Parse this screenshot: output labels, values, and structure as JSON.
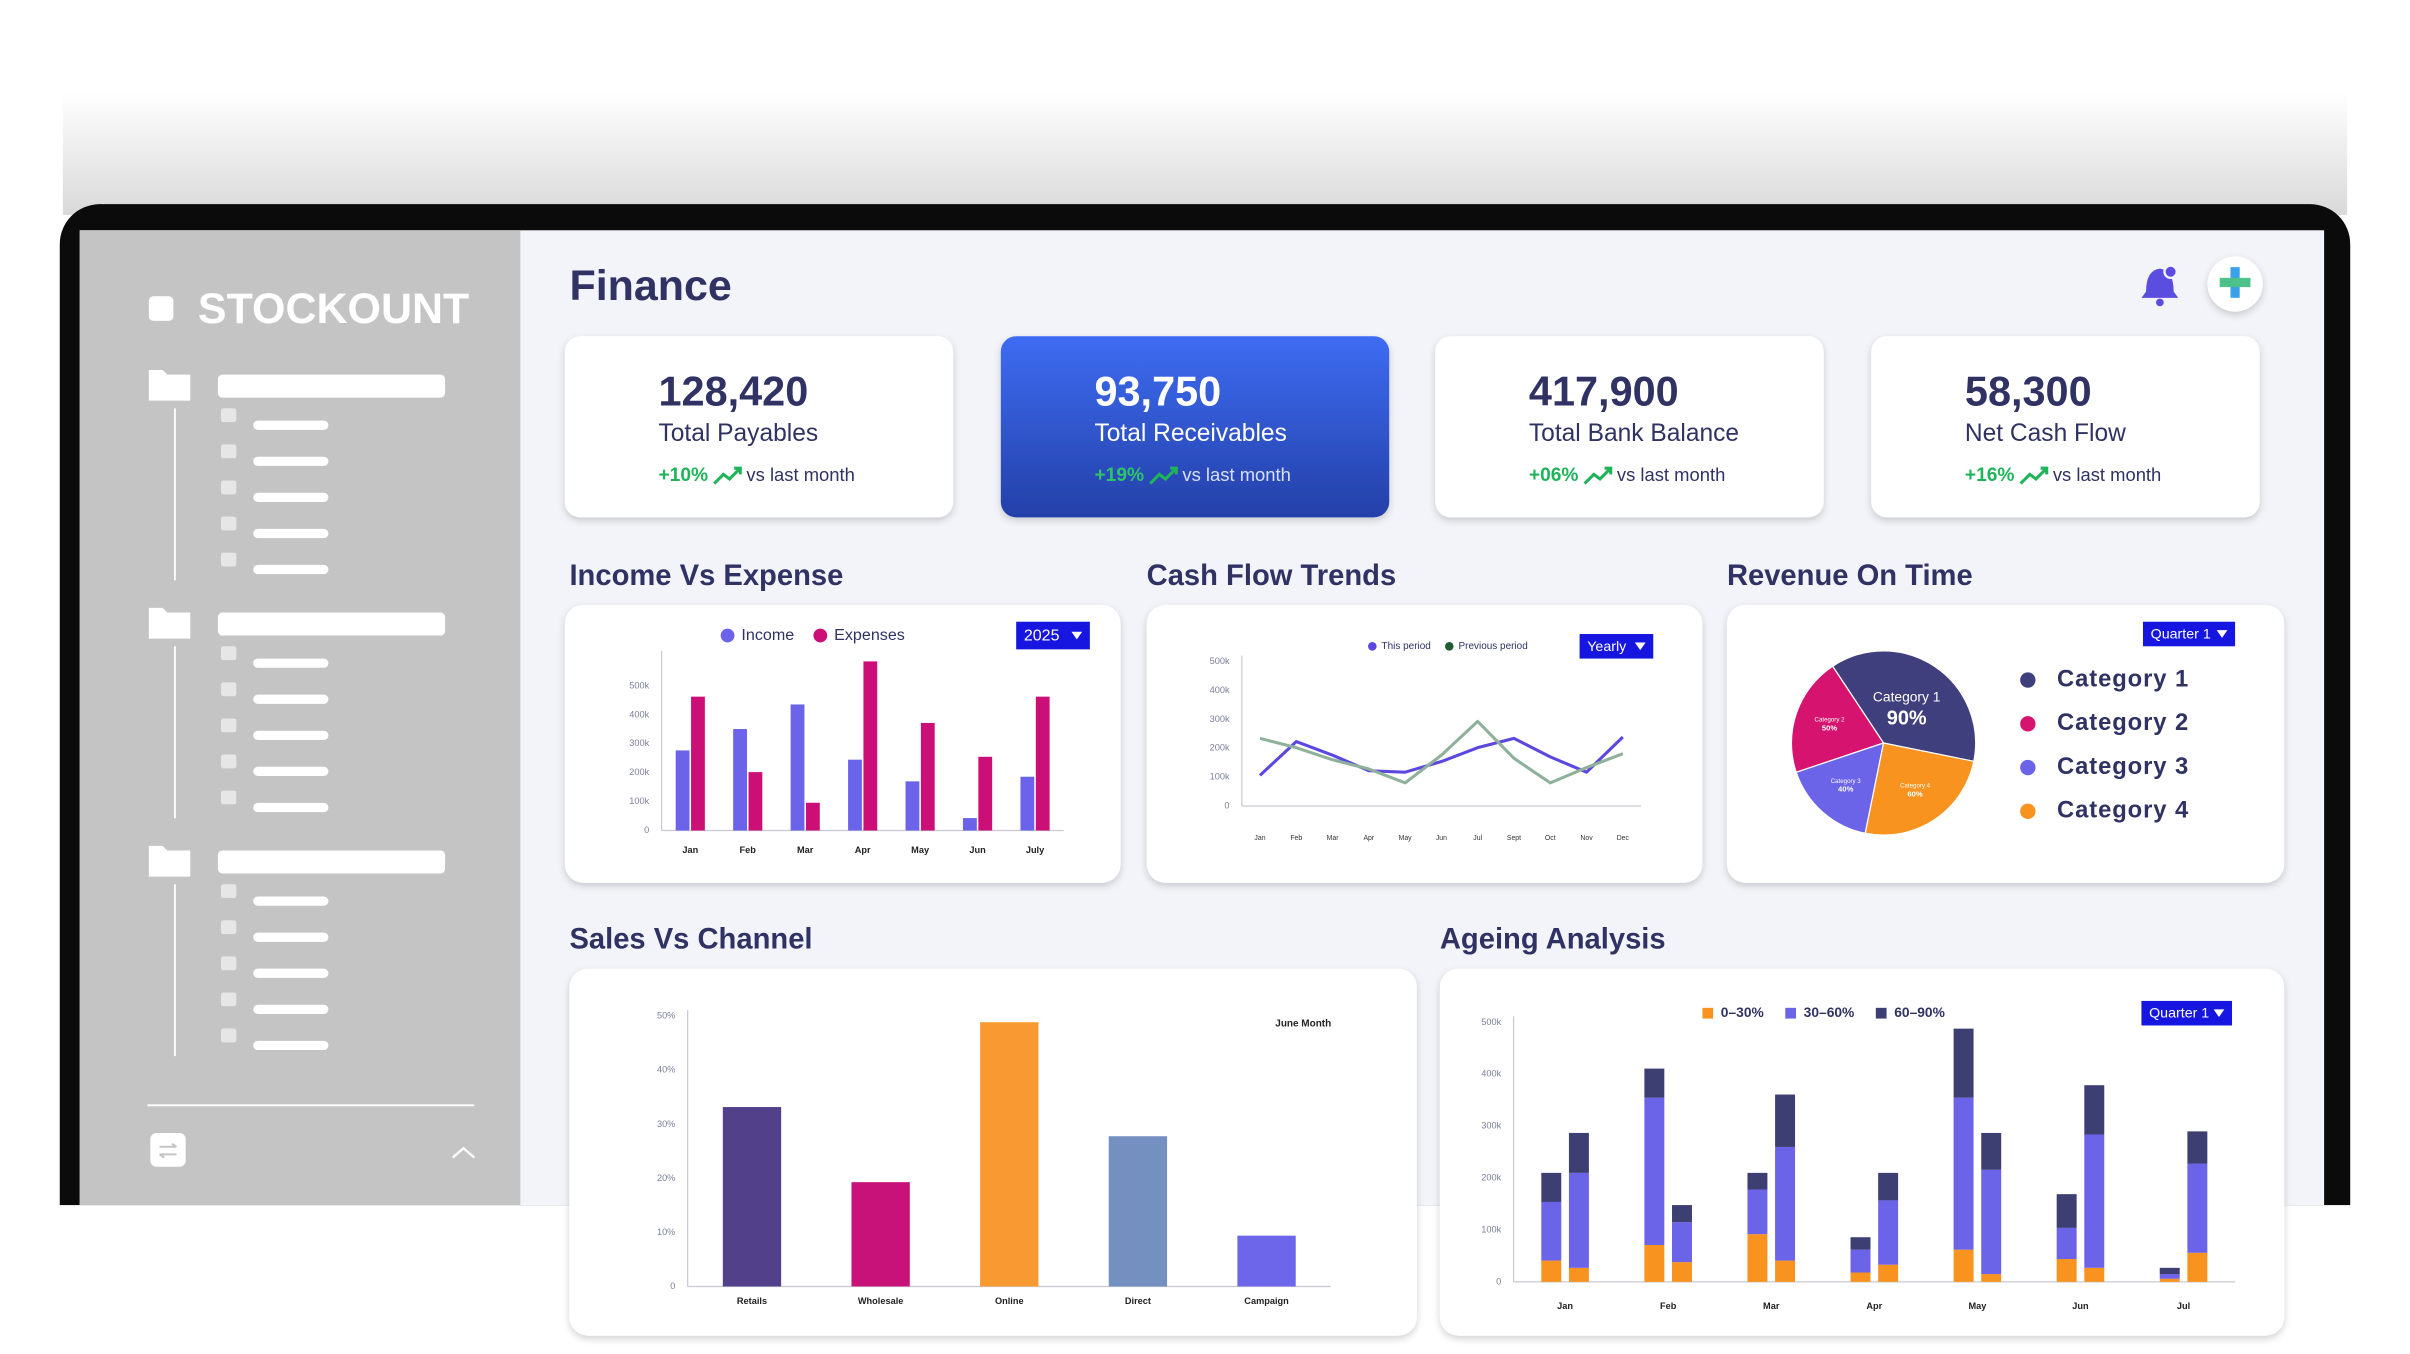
{
  "brand": "STOCKOUNT",
  "page_title": "Finance",
  "kpis": [
    {
      "value": "128,420",
      "label": "Total Payables",
      "change": "+10%",
      "note": "vs last month"
    },
    {
      "value": "93,750",
      "label": "Total Receivables",
      "change": "+19%",
      "note": "vs last month"
    },
    {
      "value": "417,900",
      "label": "Total Bank Balance",
      "change": "+06%",
      "note": "vs last month"
    },
    {
      "value": "58,300",
      "label": "Net Cash Flow",
      "change": "+16%",
      "note": "vs last month"
    }
  ],
  "chart_data": [
    {
      "type": "bar",
      "title": "Income Vs Expense",
      "filter": "2025",
      "categories": [
        "Jan",
        "Feb",
        "Mar",
        "Apr",
        "May",
        "Jun",
        "July"
      ],
      "series": [
        {
          "name": "Income",
          "color": "#6b63ea",
          "values": [
            277000,
            351000,
            436000,
            245000,
            170000,
            43000,
            186000
          ]
        },
        {
          "name": "Expenses",
          "color": "#cc0f76",
          "values": [
            463000,
            202000,
            96000,
            585000,
            372000,
            255000,
            463000
          ]
        }
      ],
      "ylim": [
        0,
        600000
      ],
      "yticks": [
        0,
        {
          "value": 100000,
          "label": "100k"
        },
        {
          "value": 200000,
          "label": "200k"
        },
        {
          "value": 300000,
          "label": "300k"
        },
        {
          "value": 400000,
          "label": "400k"
        },
        {
          "value": 500000,
          "label": "500k"
        }
      ],
      "grid": false,
      "legend": "top"
    },
    {
      "type": "line",
      "title": "Cash Flow Trends",
      "filter": "Yearly",
      "categories": [
        "Jan",
        "Feb",
        "Mar",
        "Apr",
        "May",
        "Jun",
        "Jul",
        "Sept",
        "Oct",
        "Nov",
        "Dec"
      ],
      "series": [
        {
          "name": "This period",
          "color": "#5a48e0",
          "values": [
            106000,
            223000,
            176000,
            122000,
            117000,
            154000,
            202000,
            234000,
            170000,
            117000,
            239000
          ]
        },
        {
          "name": "Previous period",
          "color": "#8fb09a",
          "values": [
            234000,
            202000,
            160000,
            128000,
            80000,
            176000,
            293000,
            165000,
            80000,
            133000,
            181000
          ]
        }
      ],
      "ylim": [
        0,
        500000
      ],
      "yticks": [
        0,
        {
          "value": 100000,
          "label": "100k"
        },
        {
          "value": 200000,
          "label": "200k"
        },
        {
          "value": 300000,
          "label": "300k"
        },
        {
          "value": 400000,
          "label": "400k"
        },
        {
          "value": 500000,
          "label": "500k"
        }
      ],
      "grid": false,
      "legend": "top"
    },
    {
      "type": "pie",
      "title": "Revenue On Time",
      "filter": "Quarter 1",
      "categories": [
        "Category 1",
        "Category 2",
        "Category 3",
        "Category 4"
      ],
      "values": [
        90,
        50,
        40,
        60
      ],
      "value_labels": [
        "90%",
        "50%",
        "40%",
        "60%"
      ],
      "colors": [
        "#3e3f7c",
        "#d6136f",
        "#6b63e8",
        "#f7931e"
      ],
      "legend": "right"
    },
    {
      "type": "bar",
      "title": "Sales Vs Channel",
      "annotation": "June Month",
      "categories": [
        "Retails",
        "Wholesale",
        "Online",
        "Direct",
        "Campaign"
      ],
      "values": [
        33.2,
        19.3,
        48.9,
        27.8,
        9.4
      ],
      "colors": [
        "#52408b",
        "#c8127a",
        "#f89a31",
        "#7390c0",
        "#6e66ea"
      ],
      "ylim": [
        0,
        50
      ],
      "yticks": [
        0,
        {
          "value": 10,
          "label": "10%"
        },
        {
          "value": 20,
          "label": "20%"
        },
        {
          "value": 30,
          "label": "30%"
        },
        {
          "value": 40,
          "label": "40%"
        },
        {
          "value": 50,
          "label": "50%"
        }
      ],
      "grid": false
    },
    {
      "type": "stacked_bar",
      "title": "Ageing Analysis",
      "filter": "Quarter 1",
      "categories": [
        "Jan",
        null,
        "Feb",
        null,
        "Mar",
        null,
        "Apr",
        null,
        "May",
        null,
        "Jun",
        null,
        "Jul",
        null
      ],
      "series": [
        {
          "name": "0–30%",
          "color": "#f7931e",
          "values": [
            41000,
            27000,
            71000,
            38000,
            92000,
            41000,
            18000,
            33000,
            62000,
            15000,
            44000,
            27000,
            6000,
            56000
          ]
        },
        {
          "name": "30–60%",
          "color": "#6b63e8",
          "values": [
            113000,
            183000,
            284000,
            77000,
            86000,
            219000,
            44000,
            124000,
            293000,
            201000,
            60000,
            257000,
            9000,
            172000
          ]
        },
        {
          "name": "60–90%",
          "color": "#3d3f73",
          "values": [
            56000,
            77000,
            56000,
            33000,
            32000,
            101000,
            24000,
            53000,
            133000,
            71000,
            65000,
            95000,
            12000,
            62000
          ]
        }
      ],
      "ylim": [
        0,
        500000
      ],
      "yticks": [
        0,
        {
          "value": 100000,
          "label": "100k"
        },
        {
          "value": 200000,
          "label": "200k"
        },
        {
          "value": 300000,
          "label": "300k"
        },
        {
          "value": 400000,
          "label": "400k"
        },
        {
          "value": 500000,
          "label": "500k"
        }
      ],
      "grid": false,
      "legend": "top"
    }
  ]
}
